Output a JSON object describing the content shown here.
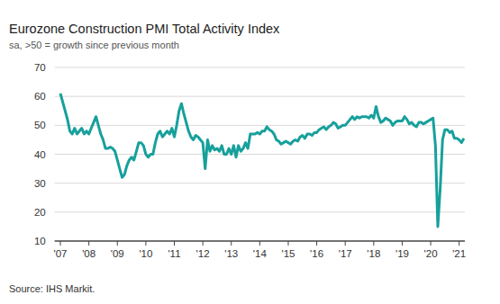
{
  "chart_data": {
    "type": "line",
    "title": "Eurozone Construction PMI Total Activity Index",
    "subtitle": "sa, >50 = growth since previous month",
    "source": "Source: IHS Markit.",
    "color": "#17a09c",
    "grid": true,
    "xlim": [
      2006.8,
      2021.2
    ],
    "ylim": [
      10,
      70
    ],
    "yticks": [
      10,
      20,
      30,
      40,
      50,
      60,
      70
    ],
    "xticks": [
      {
        "value": 2007,
        "label": "'07"
      },
      {
        "value": 2008,
        "label": "'08"
      },
      {
        "value": 2009,
        "label": "'09"
      },
      {
        "value": 2010,
        "label": "'10"
      },
      {
        "value": 2011,
        "label": "'11"
      },
      {
        "value": 2012,
        "label": "'12"
      },
      {
        "value": 2013,
        "label": "'13"
      },
      {
        "value": 2014,
        "label": "'14"
      },
      {
        "value": 2015,
        "label": "'15"
      },
      {
        "value": 2016,
        "label": "'16"
      },
      {
        "value": 2017,
        "label": "'17"
      },
      {
        "value": 2018,
        "label": "'18"
      },
      {
        "value": 2019,
        "label": "'19"
      },
      {
        "value": 2020,
        "label": "'20"
      },
      {
        "value": 2021,
        "label": "'21"
      }
    ],
    "x": [
      2007.0,
      2007.083,
      2007.167,
      2007.25,
      2007.333,
      2007.417,
      2007.5,
      2007.583,
      2007.667,
      2007.75,
      2007.833,
      2007.917,
      2008.0,
      2008.083,
      2008.167,
      2008.25,
      2008.333,
      2008.417,
      2008.5,
      2008.583,
      2008.667,
      2008.75,
      2008.833,
      2008.917,
      2009.0,
      2009.083,
      2009.167,
      2009.25,
      2009.333,
      2009.417,
      2009.5,
      2009.583,
      2009.667,
      2009.75,
      2009.833,
      2009.917,
      2010.0,
      2010.083,
      2010.167,
      2010.25,
      2010.333,
      2010.417,
      2010.5,
      2010.583,
      2010.667,
      2010.75,
      2010.833,
      2010.917,
      2011.0,
      2011.083,
      2011.167,
      2011.25,
      2011.333,
      2011.417,
      2011.5,
      2011.583,
      2011.667,
      2011.75,
      2011.833,
      2011.917,
      2012.0,
      2012.083,
      2012.167,
      2012.25,
      2012.333,
      2012.417,
      2012.5,
      2012.583,
      2012.667,
      2012.75,
      2012.833,
      2012.917,
      2013.0,
      2013.083,
      2013.167,
      2013.25,
      2013.333,
      2013.417,
      2013.5,
      2013.583,
      2013.667,
      2013.75,
      2013.833,
      2013.917,
      2014.0,
      2014.083,
      2014.167,
      2014.25,
      2014.333,
      2014.417,
      2014.5,
      2014.583,
      2014.667,
      2014.75,
      2014.833,
      2014.917,
      2015.0,
      2015.083,
      2015.167,
      2015.25,
      2015.333,
      2015.417,
      2015.5,
      2015.583,
      2015.667,
      2015.75,
      2015.833,
      2015.917,
      2016.0,
      2016.083,
      2016.167,
      2016.25,
      2016.333,
      2016.417,
      2016.5,
      2016.583,
      2016.667,
      2016.75,
      2016.833,
      2016.917,
      2017.0,
      2017.083,
      2017.167,
      2017.25,
      2017.333,
      2017.417,
      2017.5,
      2017.583,
      2017.667,
      2017.75,
      2017.833,
      2017.917,
      2018.0,
      2018.083,
      2018.167,
      2018.25,
      2018.333,
      2018.417,
      2018.5,
      2018.583,
      2018.667,
      2018.75,
      2018.833,
      2018.917,
      2019.0,
      2019.083,
      2019.167,
      2019.25,
      2019.333,
      2019.417,
      2019.5,
      2019.583,
      2019.667,
      2019.75,
      2019.833,
      2019.917,
      2020.0,
      2020.083,
      2020.167,
      2020.25,
      2020.333,
      2020.417,
      2020.5,
      2020.583,
      2020.667,
      2020.75,
      2020.833,
      2020.917,
      2021.0,
      2021.083,
      2021.167
    ],
    "values": [
      61,
      58,
      55,
      52,
      48,
      47,
      49,
      47,
      48,
      49,
      47,
      48,
      47,
      49,
      51,
      53,
      50,
      47,
      45,
      42,
      42,
      42.5,
      42,
      41,
      38,
      35,
      32,
      33,
      36,
      38,
      39,
      38,
      41,
      44,
      44,
      43,
      40,
      39,
      40,
      40,
      44,
      47,
      48,
      46,
      47,
      48,
      47,
      49,
      46,
      50,
      55,
      57.5,
      54,
      51,
      48,
      46,
      45,
      46.5,
      46,
      45,
      44,
      35,
      45,
      41,
      43,
      41.5,
      42,
      41,
      43,
      40,
      40,
      42,
      40,
      43,
      39,
      43,
      41,
      42,
      44,
      42,
      47,
      47,
      47,
      47.5,
      47,
      48,
      48,
      49.5,
      48.5,
      48,
      47,
      45,
      44.5,
      43.5,
      44,
      44.5,
      44,
      43.5,
      44.5,
      45,
      44.5,
      46,
      46.5,
      45.5,
      47,
      47,
      46.5,
      47.5,
      47.5,
      48.5,
      49,
      49.5,
      48.5,
      49.5,
      50,
      51,
      50.5,
      49,
      49.5,
      50,
      50,
      51,
      52,
      53,
      52,
      53,
      52.5,
      53,
      53,
      53,
      52.5,
      53.5,
      52.5,
      56.5,
      53,
      51,
      51.5,
      52.5,
      52,
      51.5,
      50,
      51,
      51.5,
      51.5,
      51.5,
      53,
      52,
      50.5,
      51,
      50,
      49.5,
      51,
      51,
      50.5,
      51,
      51.5,
      52,
      52.5,
      43,
      15,
      28,
      45,
      48.5,
      48.5,
      47.5,
      48,
      45.5,
      45.5,
      45,
      44,
      45.5
    ]
  }
}
